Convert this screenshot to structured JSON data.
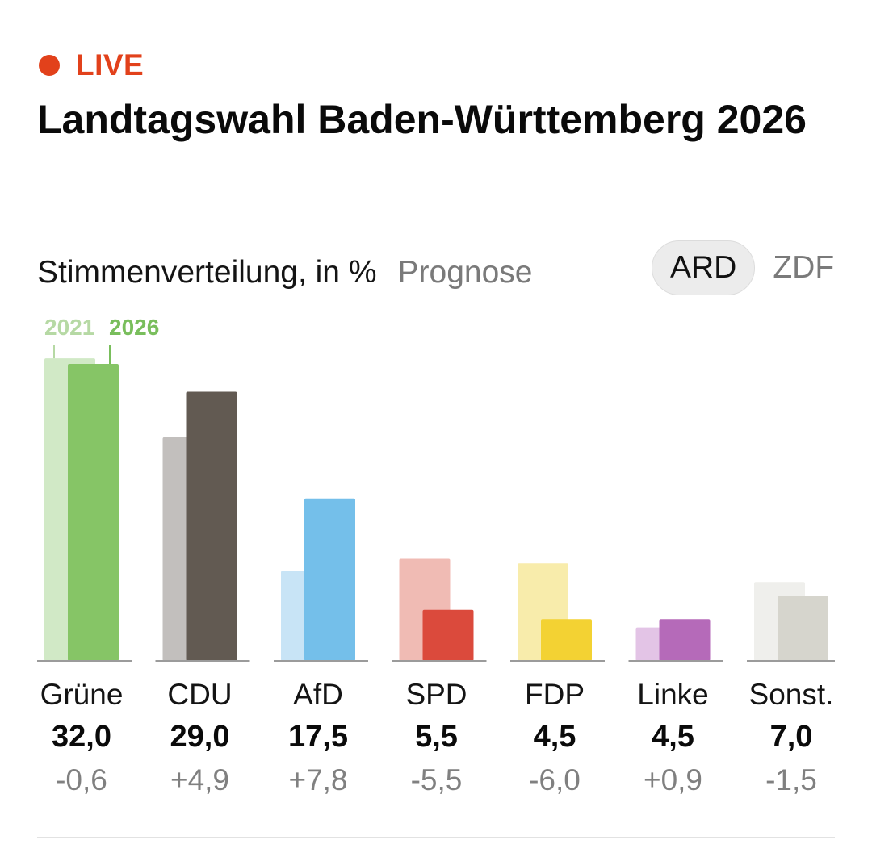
{
  "live_label": "LIVE",
  "title": "Landtagswahl Baden-Württemberg 2026",
  "subtitle": "Stimmenverteilung, in %",
  "mode": "Prognose",
  "sources": [
    {
      "label": "ARD",
      "active": true
    },
    {
      "label": "ZDF",
      "active": false
    }
  ],
  "colors": {
    "live": "#e2411b"
  },
  "chart_data": {
    "type": "bar",
    "title": "Stimmenverteilung, in %",
    "legend": [
      "2021",
      "2026"
    ],
    "categories": [
      "Grüne",
      "CDU",
      "AfD",
      "SPD",
      "FDP",
      "Linke",
      "Sonst."
    ],
    "series": [
      {
        "name": "2021",
        "values": [
          32.6,
          24.1,
          9.7,
          11.0,
          10.5,
          3.6,
          8.5
        ]
      },
      {
        "name": "2026",
        "values": [
          32.0,
          29.0,
          17.5,
          5.5,
          4.5,
          4.5,
          7.0
        ]
      }
    ],
    "value_labels": [
      "32,0",
      "29,0",
      "17,5",
      "5,5",
      "4,5",
      "4,5",
      "7,0"
    ],
    "diff_labels": [
      "-0,6",
      "+4,9",
      "+7,8",
      "-5,5",
      "-6,0",
      "+0,9",
      "-1,5"
    ],
    "colors_2021": [
      "#d1e9c6",
      "#c2bfbd",
      "#c8e4f6",
      "#f0bbb4",
      "#f8ecab",
      "#e3c4e6",
      "#efefec"
    ],
    "colors_2026": [
      "#86c566",
      "#625a52",
      "#74bfea",
      "#db4a3c",
      "#f3d233",
      "#b56ab9",
      "#d6d5cd"
    ],
    "ylim": [
      0,
      33
    ]
  }
}
